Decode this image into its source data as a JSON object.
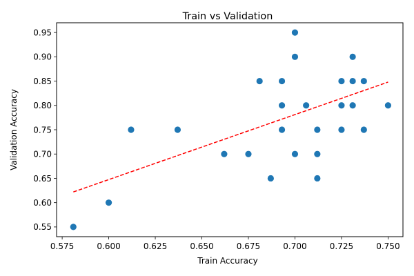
{
  "chart_data": {
    "type": "scatter",
    "title": "Train vs Validation",
    "xlabel": "Train Accuracy",
    "ylabel": "Validation Accuracy",
    "xlim": [
      0.572,
      0.758
    ],
    "ylim": [
      0.53,
      0.97
    ],
    "x_ticks": [
      "0.575",
      "0.600",
      "0.625",
      "0.650",
      "0.675",
      "0.700",
      "0.725",
      "0.750"
    ],
    "y_ticks": [
      "0.55",
      "0.60",
      "0.65",
      "0.70",
      "0.75",
      "0.80",
      "0.85",
      "0.90",
      "0.95"
    ],
    "grid": false,
    "legend": "none",
    "marker_color": "#1f77b4",
    "trendline": {
      "style": "dashed",
      "color": "#ff0000",
      "x": [
        0.581,
        0.75
      ],
      "y": [
        0.622,
        0.848
      ]
    },
    "points": [
      {
        "x": 0.581,
        "y": 0.55
      },
      {
        "x": 0.6,
        "y": 0.6
      },
      {
        "x": 0.612,
        "y": 0.75
      },
      {
        "x": 0.637,
        "y": 0.75
      },
      {
        "x": 0.662,
        "y": 0.7
      },
      {
        "x": 0.675,
        "y": 0.7
      },
      {
        "x": 0.681,
        "y": 0.85
      },
      {
        "x": 0.687,
        "y": 0.65
      },
      {
        "x": 0.693,
        "y": 0.75
      },
      {
        "x": 0.693,
        "y": 0.8
      },
      {
        "x": 0.693,
        "y": 0.85
      },
      {
        "x": 0.7,
        "y": 0.7
      },
      {
        "x": 0.7,
        "y": 0.9
      },
      {
        "x": 0.7,
        "y": 0.95
      },
      {
        "x": 0.706,
        "y": 0.8
      },
      {
        "x": 0.712,
        "y": 0.65
      },
      {
        "x": 0.712,
        "y": 0.7
      },
      {
        "x": 0.712,
        "y": 0.75
      },
      {
        "x": 0.725,
        "y": 0.75
      },
      {
        "x": 0.725,
        "y": 0.8
      },
      {
        "x": 0.725,
        "y": 0.85
      },
      {
        "x": 0.731,
        "y": 0.8
      },
      {
        "x": 0.731,
        "y": 0.85
      },
      {
        "x": 0.731,
        "y": 0.9
      },
      {
        "x": 0.737,
        "y": 0.75
      },
      {
        "x": 0.737,
        "y": 0.85
      },
      {
        "x": 0.75,
        "y": 0.8
      }
    ]
  }
}
